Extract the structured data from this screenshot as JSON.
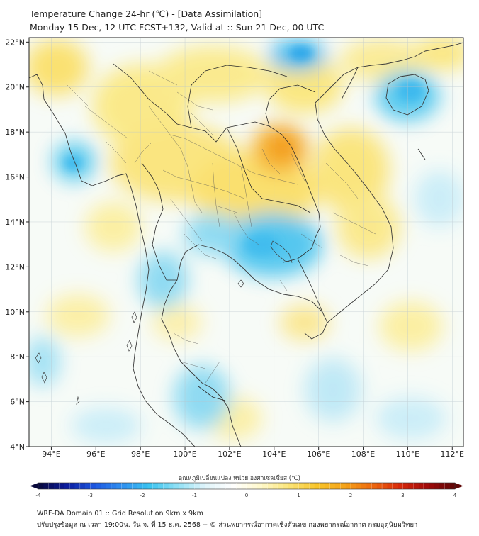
{
  "header": {
    "title_line1": "Temperature Change 24-hr (℃) - [Data Assimilation]",
    "title_line2": "Monday 15 Dec, 12 UTC FCST+132, Valid at :: Sun 21 Dec, 00 UTC"
  },
  "map": {
    "lon_range": [
      93,
      112.5
    ],
    "lat_range": [
      4,
      22.2
    ],
    "lon_ticks": [
      "94°E",
      "96°E",
      "98°E",
      "100°E",
      "102°E",
      "104°E",
      "106°E",
      "108°E",
      "110°E",
      "112°E"
    ],
    "lat_ticks": [
      "4°N",
      "6°N",
      "8°N",
      "10°N",
      "12°N",
      "14°N",
      "16°N",
      "18°N",
      "20°N",
      "22°N"
    ]
  },
  "colorbar": {
    "label": "อุณหภูมิเปลี่ยนแปลง หน่วย องศาเซลเซียส (℃)",
    "ticks": [
      "-4",
      "-3",
      "-2",
      "-1",
      "0",
      "1",
      "2",
      "3",
      "4"
    ],
    "range": [
      -4,
      4
    ],
    "colors": [
      "#08083a",
      "#0a1a9c",
      "#1c56e0",
      "#2f8ff0",
      "#39c3f0",
      "#8fe0f5",
      "#dff4fa",
      "#ffffff",
      "#fff9cc",
      "#fbe57a",
      "#f8c52a",
      "#f5a418",
      "#ee6b0e",
      "#d92a0a",
      "#a10a0a",
      "#5e0606"
    ]
  },
  "footer": {
    "line1": "WRF-DA Domain 01 :: Grid Resolution 9km x 9km",
    "line2": "ปรับปรุงข้อมูล ณ เวลา 19:00น. วัน จ. ที่ 15 ธ.ค. 2568 -- © ส่วนพยากรณ์อากาศเชิงตัวเลข กองพยากรณ์อากาศ กรมอุตุนิยมวิทยา"
  }
}
